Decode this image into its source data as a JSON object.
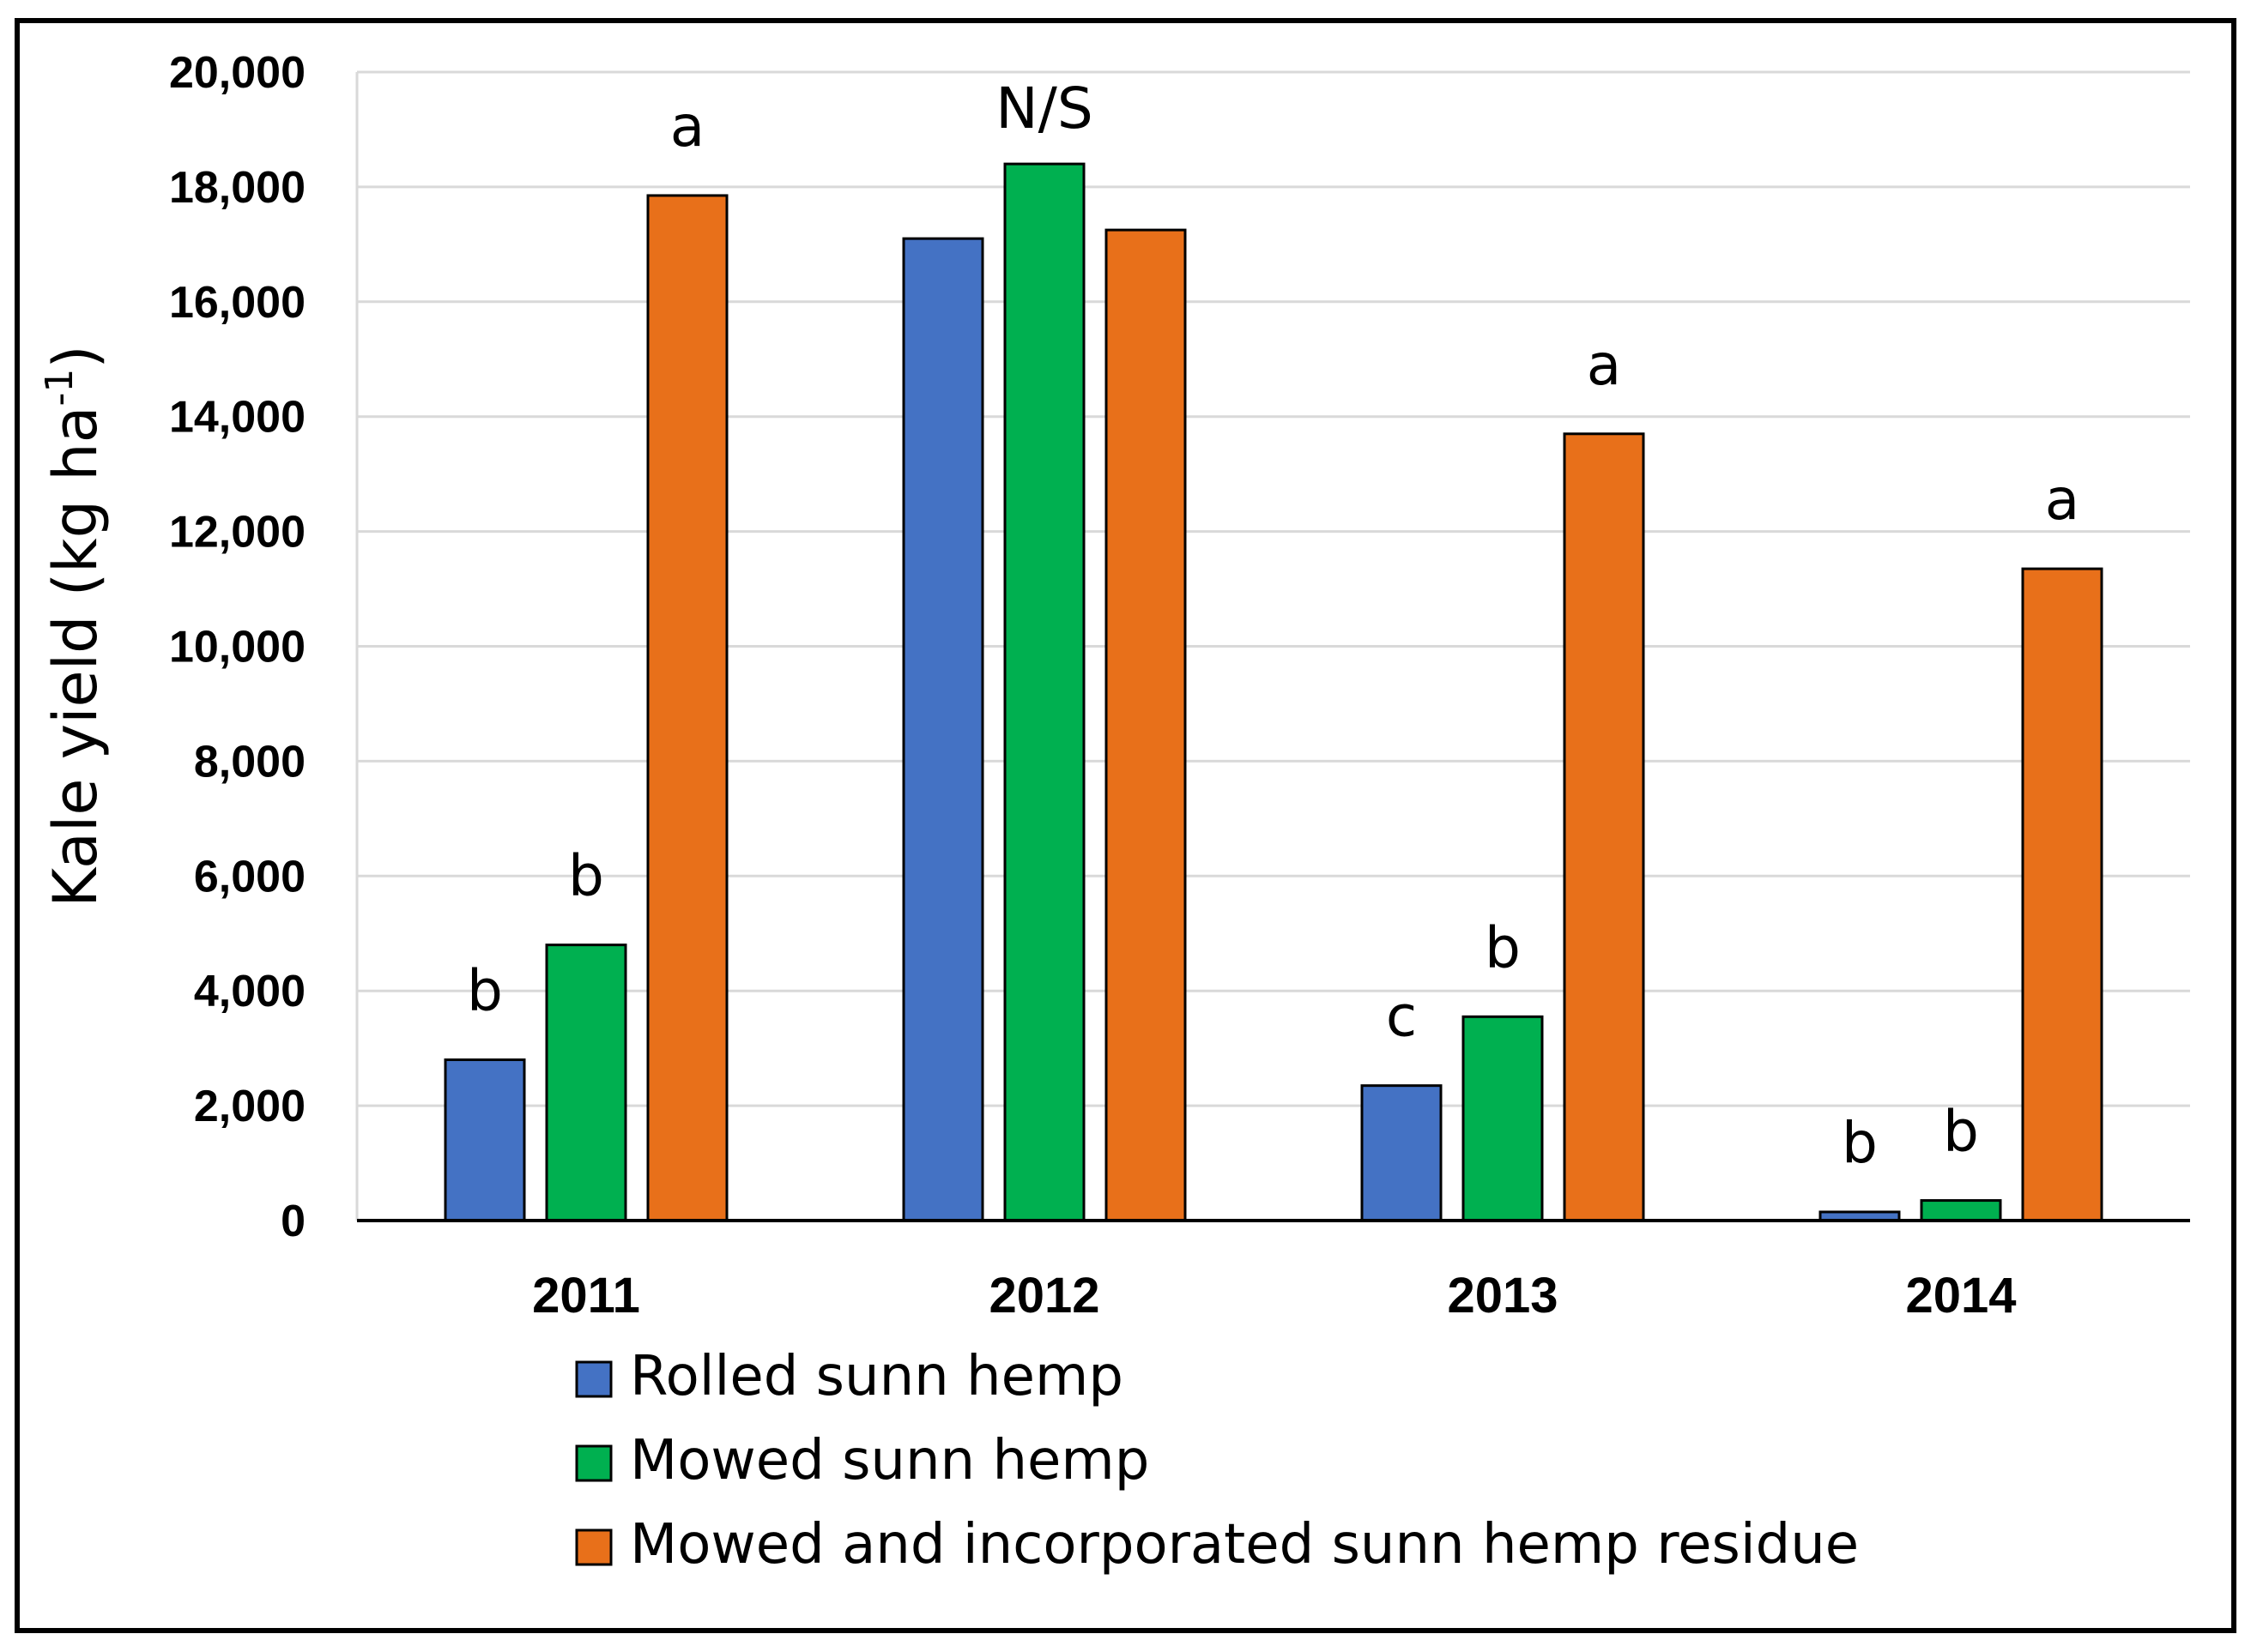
{
  "chart_data": {
    "type": "bar",
    "title": "",
    "xlabel": "",
    "ylabel": {
      "main": "Kale yield (kg ha",
      "superscript": "-1",
      "close": ")"
    },
    "ylim": [
      0,
      20000
    ],
    "yticks": [
      0,
      2000,
      4000,
      6000,
      8000,
      10000,
      12000,
      14000,
      16000,
      18000,
      20000
    ],
    "ytick_labels": [
      "0",
      "2,000",
      "4,000",
      "6,000",
      "8,000",
      "10,000",
      "12,000",
      "14,000",
      "16,000",
      "18,000",
      "20,000"
    ],
    "grid": true,
    "legend_position": "bottom",
    "categories": [
      "2011",
      "2012",
      "2013",
      "2014"
    ],
    "series": [
      {
        "name": "Rolled sunn hemp",
        "color": "#4472C4",
        "values": [
          2800,
          17100,
          2350,
          150
        ]
      },
      {
        "name": "Mowed sunn hemp",
        "color": "#00B050",
        "values": [
          4800,
          18400,
          3550,
          350
        ]
      },
      {
        "name": "Mowed and incorporated sunn hemp residue",
        "color": "#E8701A",
        "values": [
          17850,
          17250,
          13700,
          11350
        ]
      }
    ],
    "significance_letters": [
      [
        "b",
        "b",
        "a"
      ],
      [
        "",
        "N/S",
        ""
      ],
      [
        "c",
        "b",
        "a"
      ],
      [
        "b",
        "b",
        "a"
      ]
    ],
    "gridline_color": "#d9d9d9"
  }
}
